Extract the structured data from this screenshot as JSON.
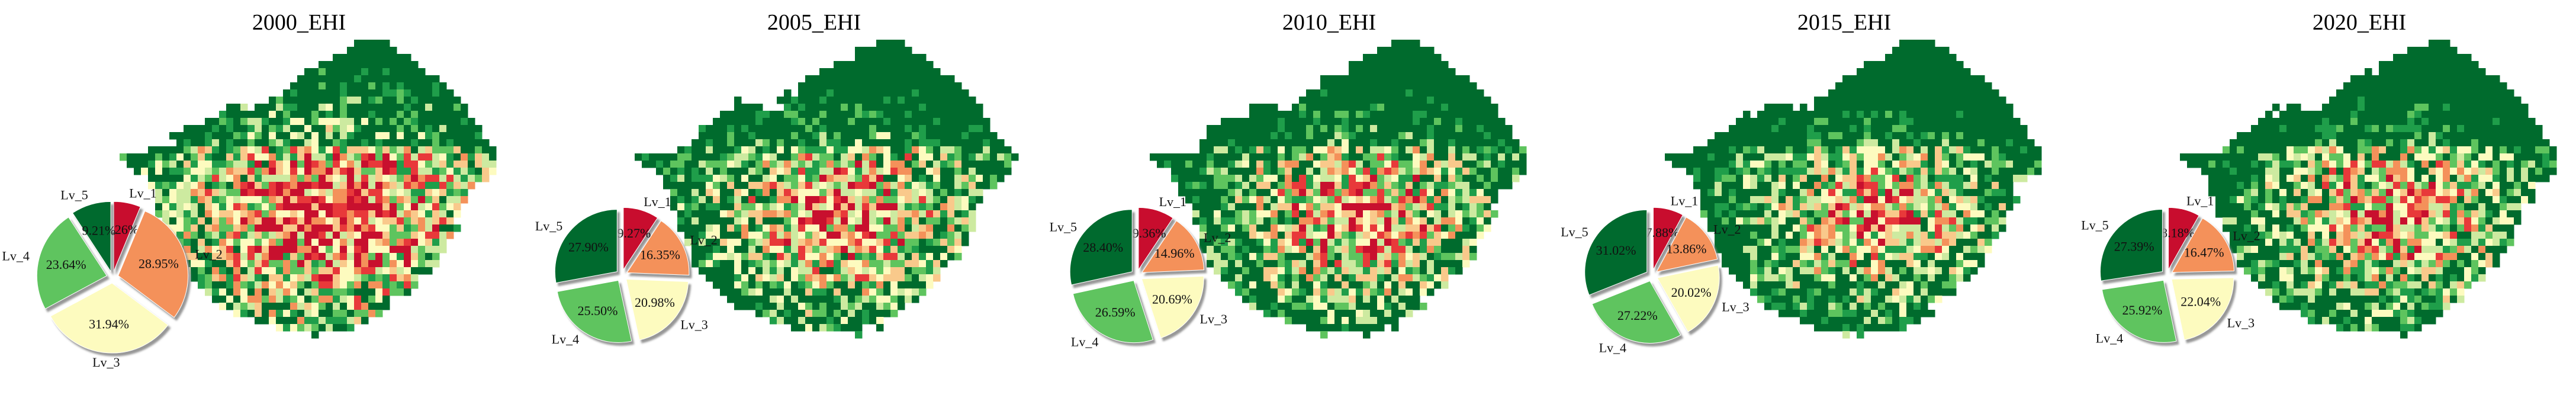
{
  "chart_data": [
    {
      "type": "pie",
      "title": "2000_EHI",
      "categories": [
        "Lv_1",
        "Lv_2",
        "Lv_3",
        "Lv_4",
        "Lv_5"
      ],
      "values": [
        6.26,
        28.95,
        31.94,
        23.64,
        9.21
      ],
      "value_labels": [
        "6.26%",
        "28.95%",
        "31.94%",
        "23.64%",
        "9.21%"
      ]
    },
    {
      "type": "pie",
      "title": "2005_EHI",
      "categories": [
        "Lv_1",
        "Lv_2",
        "Lv_3",
        "Lv_4",
        "Lv_5"
      ],
      "values": [
        9.27,
        16.35,
        20.98,
        25.5,
        27.9
      ],
      "value_labels": [
        "9.27%",
        "16.35%",
        "20.98%",
        "25.50%",
        "27.90%"
      ]
    },
    {
      "type": "pie",
      "title": "2010_EHI",
      "categories": [
        "Lv_1",
        "Lv_2",
        "Lv_3",
        "Lv_4",
        "Lv_5"
      ],
      "values": [
        9.36,
        14.96,
        20.69,
        26.59,
        28.4
      ],
      "value_labels": [
        "9.36%",
        "14.96%",
        "20.69%",
        "26.59%",
        "28.40%"
      ]
    },
    {
      "type": "pie",
      "title": "2015_EHI",
      "categories": [
        "Lv_1",
        "Lv_2",
        "Lv_3",
        "Lv_4",
        "Lv_5"
      ],
      "values": [
        7.88,
        13.86,
        20.02,
        27.22,
        31.02
      ],
      "value_labels": [
        "7.88%",
        "13.86%",
        "20.02%",
        "27.22%",
        "31.02%"
      ]
    },
    {
      "type": "pie",
      "title": "2020_EHI",
      "categories": [
        "Lv_1",
        "Lv_2",
        "Lv_3",
        "Lv_4",
        "Lv_5"
      ],
      "values": [
        8.18,
        16.47,
        22.04,
        25.92,
        27.39
      ],
      "value_labels": [
        "8.18%",
        "16.47%",
        "22.04%",
        "25.92%",
        "27.39%"
      ]
    }
  ],
  "colors": {
    "Lv_1": "#c8102e",
    "Lv_2": "#f4915a",
    "Lv_3": "#fdfbbf",
    "Lv_4": "#5ec45e",
    "Lv_5": "#006b2d"
  },
  "map_palette": [
    "#c8102e",
    "#e8393a",
    "#f4915a",
    "#f9c98b",
    "#fdfbbf",
    "#cdeaa0",
    "#5ec45e",
    "#1f9e4a",
    "#006b2d"
  ],
  "map_type": "raster"
}
